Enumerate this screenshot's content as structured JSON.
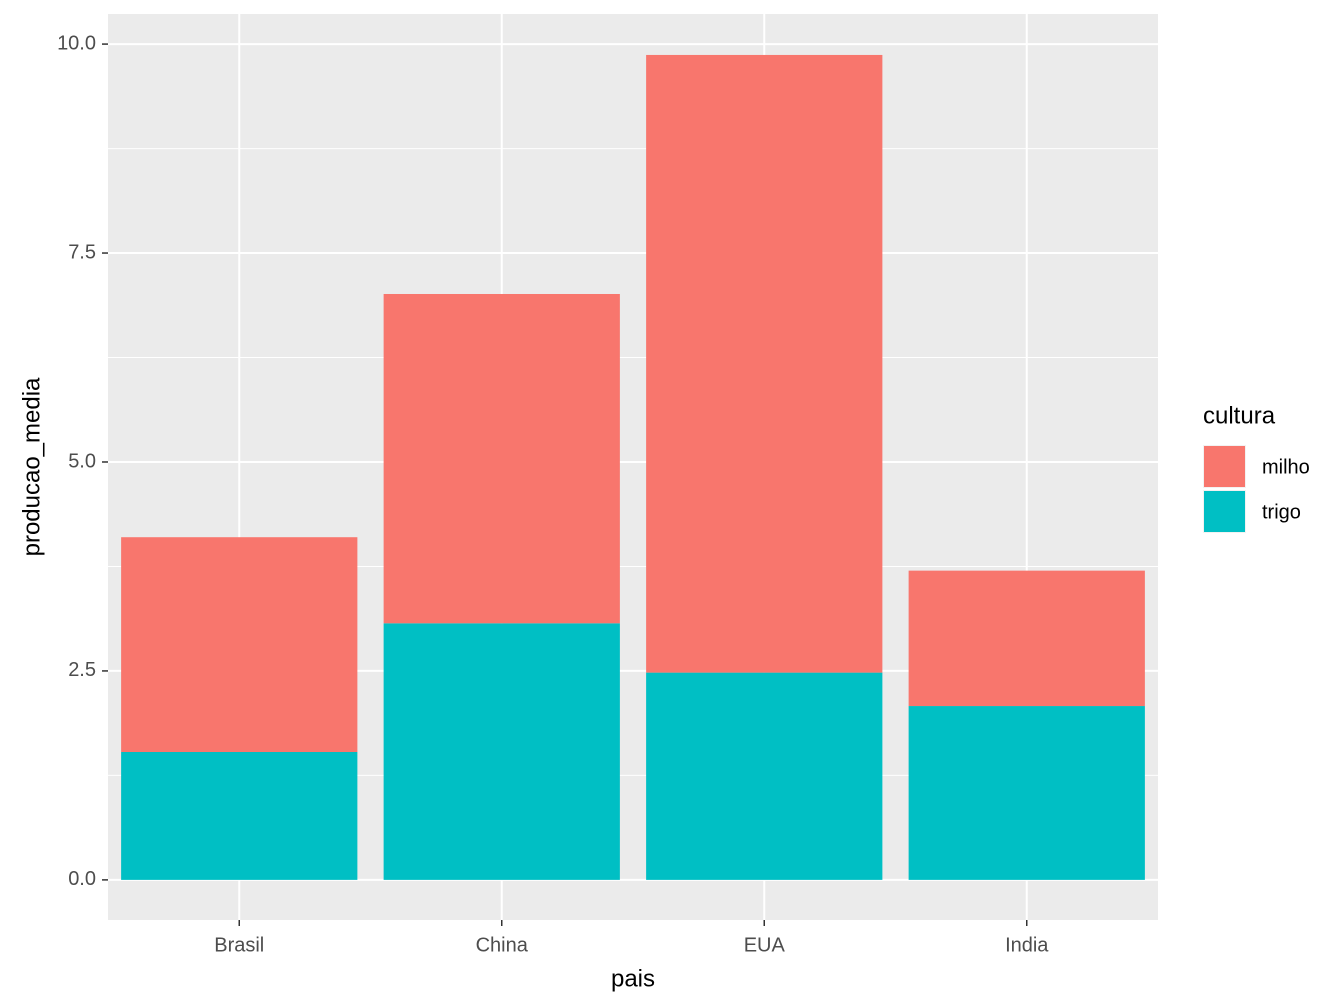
{
  "chart_data": {
    "type": "stacked_bar",
    "x_label": "pais",
    "y_label": "producao_media",
    "legend_title": "cultura",
    "categories": [
      "Brasil",
      "China",
      "EUA",
      "India"
    ],
    "series": [
      {
        "name": "milho",
        "color": "#F8766D",
        "values": [
          2.57,
          3.94,
          7.39,
          1.62
        ]
      },
      {
        "name": "trigo",
        "color": "#00BFC4",
        "values": [
          1.53,
          3.07,
          2.48,
          2.08
        ]
      }
    ],
    "ylim": [
      -0.48,
      10.36
    ],
    "yticks": [
      {
        "value": 0,
        "label": "0.0"
      },
      {
        "value": 2.5,
        "label": "2.5"
      },
      {
        "value": 5,
        "label": "5.0"
      },
      {
        "value": 7.5,
        "label": "7.5"
      },
      {
        "value": 10,
        "label": "10.0"
      }
    ],
    "grid": true,
    "legend_position": "right"
  }
}
